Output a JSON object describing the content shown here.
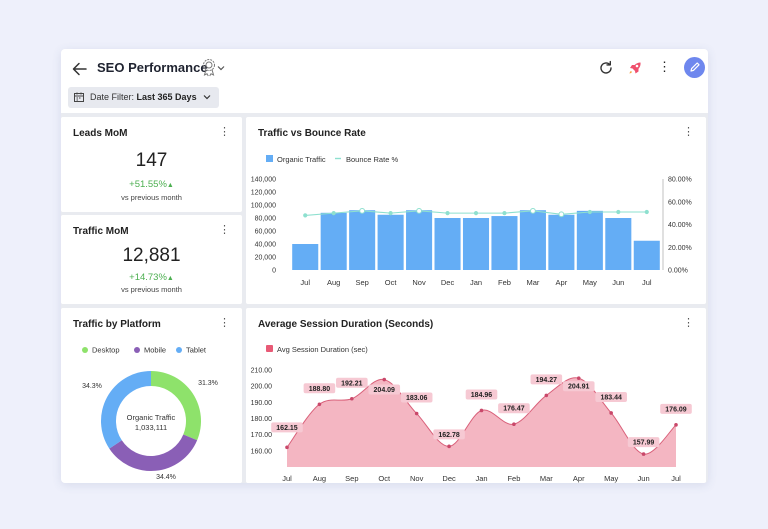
{
  "header": {
    "title": "SEO Performance",
    "filter_label": "Date Filter:",
    "filter_value": "Last 365 Days"
  },
  "colors": {
    "accent": "#6e87ee",
    "bar": "#64adf5",
    "line": "#8ee0cf",
    "positive": "#4caf50",
    "desktop": "#8ee26b",
    "mobile": "#8a5fb6",
    "tablet": "#64adf5",
    "area": "#f4b6c2"
  },
  "kpis": {
    "leads": {
      "title": "Leads MoM",
      "value": "147",
      "delta": "+51.55%",
      "sub": "vs previous month"
    },
    "traffic": {
      "title": "Traffic MoM",
      "value": "12,881",
      "delta": "+14.73%",
      "sub": "vs previous month"
    }
  },
  "traffic_bounce": {
    "title": "Traffic vs Bounce Rate"
  },
  "platform": {
    "title": "Traffic by Platform",
    "center_label": "Organic Traffic",
    "center_value": "1,033,111"
  },
  "session": {
    "title": "Average Session Duration (Seconds)"
  },
  "chart_data": [
    {
      "type": "bar",
      "title": "Traffic vs Bounce Rate",
      "categories": [
        "Jul",
        "Aug",
        "Sep",
        "Oct",
        "Nov",
        "Dec",
        "Jan",
        "Feb",
        "Mar",
        "Apr",
        "May",
        "Jun",
        "Jul"
      ],
      "series": [
        {
          "name": "Organic Traffic",
          "type": "bar",
          "axis": "left",
          "values": [
            40000,
            88000,
            92000,
            85000,
            92000,
            80000,
            80000,
            83000,
            92000,
            85000,
            91000,
            80000,
            45000
          ]
        },
        {
          "name": "Bounce Rate %",
          "type": "line",
          "axis": "right",
          "values": [
            48,
            50,
            52,
            50,
            52,
            50,
            50,
            50,
            52,
            49,
            51,
            51,
            51
          ]
        }
      ],
      "ylim": [
        0,
        140000
      ],
      "yticks": [
        "140,000",
        "120,000",
        "100,000",
        "80,000",
        "60,000",
        "40,000",
        "20,000",
        "0"
      ],
      "y2lim": [
        0,
        80
      ],
      "y2ticks": [
        "80.00%",
        "60.00%",
        "40.00%",
        "20.00%",
        "0.00%"
      ]
    },
    {
      "type": "pie",
      "title": "Traffic by Platform",
      "labels": [
        "Desktop",
        "Mobile",
        "Tablet"
      ],
      "values": [
        31.3,
        34.4,
        34.3
      ],
      "value_labels": [
        "31.3%",
        "34.4%",
        "34.3%"
      ]
    },
    {
      "type": "area",
      "title": "Average Session Duration (Seconds)",
      "series_name": "Avg Session Duration (sec)",
      "categories": [
        "Jul",
        "Aug",
        "Sep",
        "Oct",
        "Nov",
        "Dec",
        "Jan",
        "Feb",
        "Mar",
        "Apr",
        "May",
        "Jun",
        "Jul"
      ],
      "values": [
        162.15,
        188.8,
        192.21,
        204.09,
        183.06,
        162.78,
        184.96,
        176.47,
        194.27,
        204.91,
        183.44,
        157.99,
        176.09
      ],
      "value_labels": [
        "162.15",
        "188.80",
        "192.21",
        "204.09",
        "183.06",
        "162.78",
        "184.96",
        "176.47",
        "194.27",
        "204.91",
        "183.44",
        "157.99",
        "176.09"
      ],
      "ylim": [
        150,
        210
      ],
      "yticks": [
        "210.00",
        "200.00",
        "190.00",
        "180.00",
        "170.00",
        "160.00"
      ]
    }
  ]
}
